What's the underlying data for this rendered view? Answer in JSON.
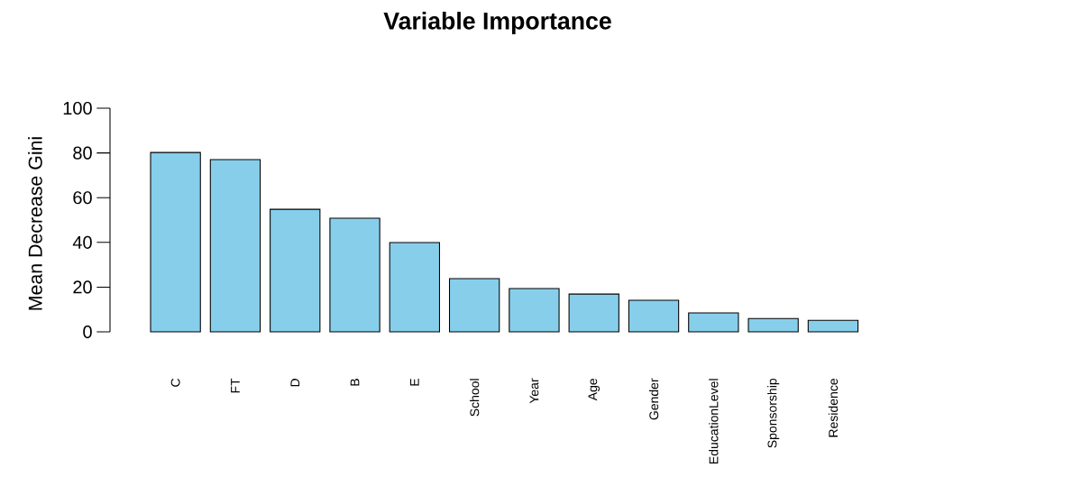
{
  "chart_data": {
    "type": "bar",
    "title": "Variable Importance",
    "ylabel": "Mean Decrease Gini",
    "categories": [
      "C",
      "FT",
      "D",
      "B",
      "E",
      "School",
      "Year",
      "Age",
      "Gender",
      "EducationLevel",
      "Sponsorship",
      "Residence"
    ],
    "values": [
      80.2,
      77,
      54.8,
      50.8,
      39.9,
      23.8,
      19.4,
      16.9,
      14.1,
      8.5,
      6.0,
      5.2
    ],
    "color": "#87ceeb",
    "ylim": [
      0,
      100
    ],
    "yticks": [
      0,
      20,
      40,
      60,
      80,
      100
    ]
  }
}
